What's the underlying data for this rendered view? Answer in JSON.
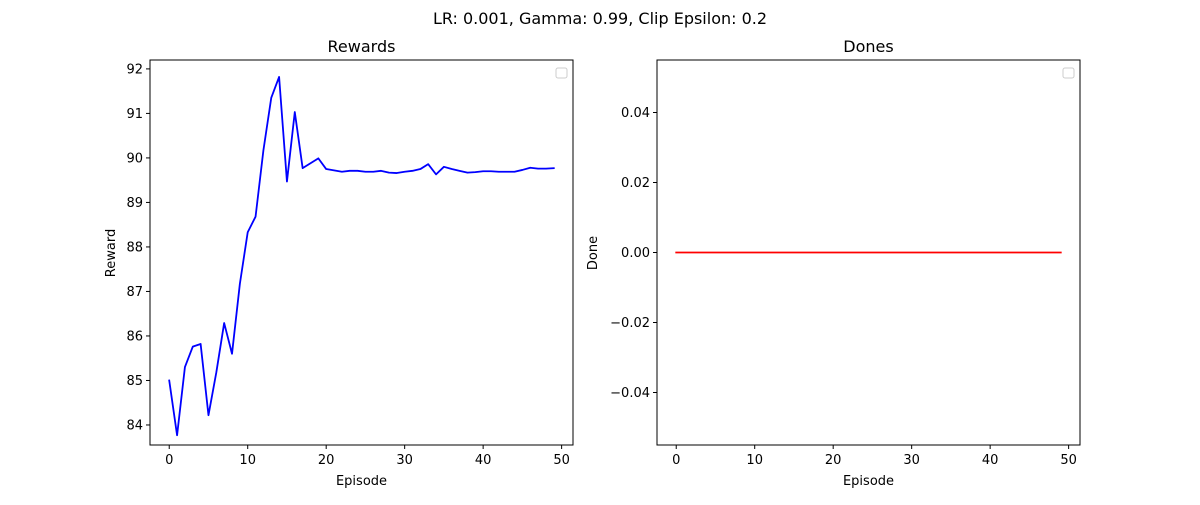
{
  "figure": {
    "suptitle": "LR: 0.001, Gamma: 0.99, Clip Epsilon: 0.2"
  },
  "chart_data": [
    {
      "type": "line",
      "title": "Rewards",
      "xlabel": "Episode",
      "ylabel": "Reward",
      "xlim": [
        -2.45,
        51.45
      ],
      "ylim": [
        83.55,
        92.2
      ],
      "xticks": [
        0,
        10,
        20,
        30,
        40,
        50
      ],
      "yticks": [
        84,
        85,
        86,
        87,
        88,
        89,
        90,
        91,
        92
      ],
      "legend": "upper-right, empty",
      "grid": false,
      "series": [
        {
          "color": "#0000ff",
          "x": [
            0,
            1,
            2,
            3,
            4,
            5,
            6,
            7,
            8,
            9,
            10,
            11,
            12,
            13,
            14,
            15,
            16,
            17,
            18,
            19,
            20,
            21,
            22,
            23,
            24,
            25,
            26,
            27,
            28,
            29,
            30,
            31,
            32,
            33,
            34,
            35,
            36,
            37,
            38,
            39,
            40,
            41,
            42,
            43,
            44,
            45,
            46,
            47,
            48,
            49
          ],
          "y": [
            85.0,
            83.77,
            85.3,
            85.76,
            85.82,
            84.22,
            85.18,
            86.29,
            85.6,
            87.17,
            88.33,
            88.68,
            90.17,
            91.35,
            91.82,
            89.47,
            91.03,
            89.77,
            89.88,
            89.99,
            89.75,
            89.72,
            89.69,
            89.71,
            89.71,
            89.69,
            89.69,
            89.71,
            89.67,
            89.66,
            89.69,
            89.71,
            89.75,
            89.86,
            89.63,
            89.8,
            89.75,
            89.71,
            89.67,
            89.68,
            89.7,
            89.7,
            89.69,
            89.69,
            89.69,
            89.73,
            89.78,
            89.76,
            89.76,
            89.77
          ]
        }
      ]
    },
    {
      "type": "line",
      "title": "Dones",
      "xlabel": "Episode",
      "ylabel": "Done",
      "xlim": [
        -2.45,
        51.45
      ],
      "ylim": [
        -0.055,
        0.055
      ],
      "xticks": [
        0,
        10,
        20,
        30,
        40,
        50
      ],
      "yticks": [
        -0.04,
        -0.02,
        0.0,
        0.02,
        0.04
      ],
      "ytick_labels": [
        "−0.04",
        "−0.02",
        "0.00",
        "0.02",
        "0.04"
      ],
      "legend": "upper-right, empty",
      "grid": false,
      "series": [
        {
          "color": "#ff0000",
          "x": [
            0,
            1,
            2,
            3,
            4,
            5,
            6,
            7,
            8,
            9,
            10,
            11,
            12,
            13,
            14,
            15,
            16,
            17,
            18,
            19,
            20,
            21,
            22,
            23,
            24,
            25,
            26,
            27,
            28,
            29,
            30,
            31,
            32,
            33,
            34,
            35,
            36,
            37,
            38,
            39,
            40,
            41,
            42,
            43,
            44,
            45,
            46,
            47,
            48,
            49
          ],
          "y": [
            0,
            0,
            0,
            0,
            0,
            0,
            0,
            0,
            0,
            0,
            0,
            0,
            0,
            0,
            0,
            0,
            0,
            0,
            0,
            0,
            0,
            0,
            0,
            0,
            0,
            0,
            0,
            0,
            0,
            0,
            0,
            0,
            0,
            0,
            0,
            0,
            0,
            0,
            0,
            0,
            0,
            0,
            0,
            0,
            0,
            0,
            0,
            0,
            0,
            0
          ]
        }
      ]
    }
  ]
}
